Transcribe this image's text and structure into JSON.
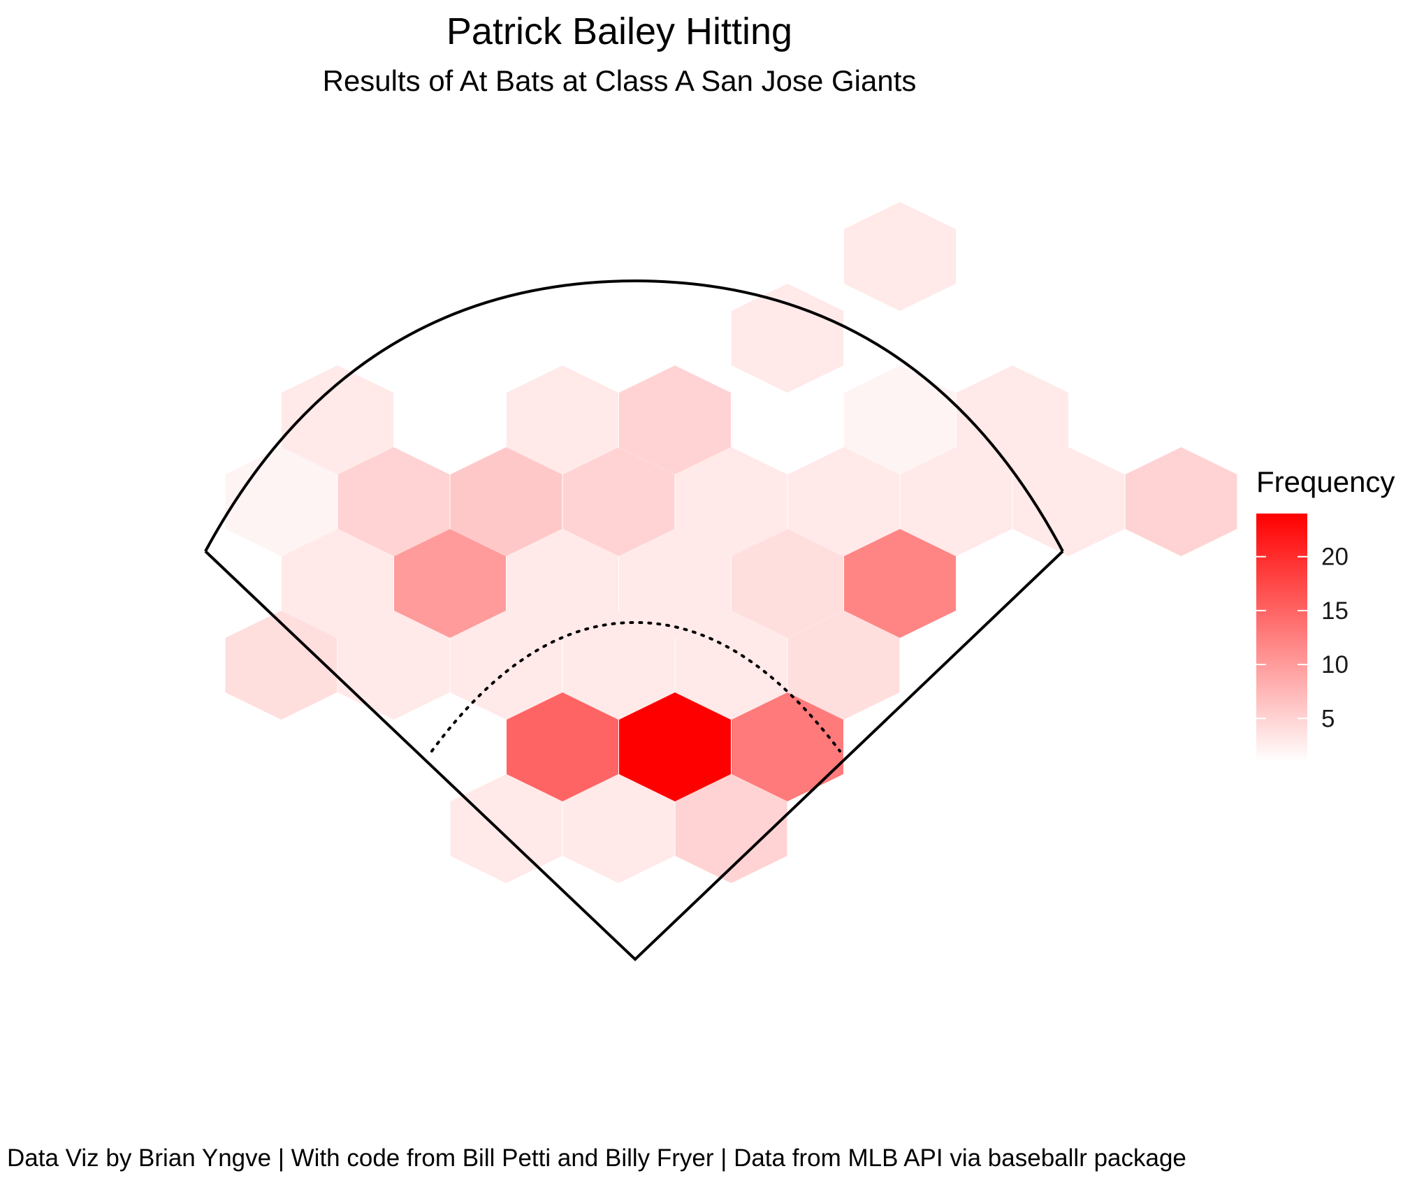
{
  "chart_data": {
    "type": "heatmap",
    "title": "Patrick Bailey Hitting",
    "subtitle": "Results of At Bats at Class A San Jose Giants",
    "caption": "Data Viz by Brian Yngve | With code from Bill Petti and Billy Fryer | Data from MLB API via baseballr package",
    "legend": {
      "title": "Frequency",
      "ticks": [
        5,
        10,
        15,
        20
      ],
      "range": [
        1,
        24
      ],
      "color_low": "#ffffff",
      "color_high": "#ff0000",
      "placement": "right"
    },
    "cells": [
      {
        "col": 5,
        "row": 0,
        "value": 3
      },
      {
        "col": 4,
        "row": 1,
        "value": 3
      },
      {
        "col": 0,
        "row": 2,
        "value": 3
      },
      {
        "col": 2,
        "row": 2,
        "value": 3
      },
      {
        "col": 3,
        "row": 2,
        "value": 5
      },
      {
        "col": 5,
        "row": 2,
        "value": 2
      },
      {
        "col": 6,
        "row": 2,
        "value": 3
      },
      {
        "col": -0.5,
        "row": 3,
        "value": 2
      },
      {
        "col": 0.5,
        "row": 3,
        "value": 5
      },
      {
        "col": 1.5,
        "row": 3,
        "value": 6
      },
      {
        "col": 2.5,
        "row": 3,
        "value": 5
      },
      {
        "col": 3.5,
        "row": 3,
        "value": 3
      },
      {
        "col": 4.5,
        "row": 3,
        "value": 3
      },
      {
        "col": 5.5,
        "row": 3,
        "value": 3
      },
      {
        "col": 6.5,
        "row": 3,
        "value": 3
      },
      {
        "col": 7.5,
        "row": 3,
        "value": 5
      },
      {
        "col": 0,
        "row": 4,
        "value": 3
      },
      {
        "col": 1,
        "row": 4,
        "value": 10
      },
      {
        "col": 2,
        "row": 4,
        "value": 3
      },
      {
        "col": 3,
        "row": 4,
        "value": 3
      },
      {
        "col": 4,
        "row": 4,
        "value": 4
      },
      {
        "col": 5,
        "row": 4,
        "value": 12
      },
      {
        "col": -0.5,
        "row": 5,
        "value": 4
      },
      {
        "col": 0.5,
        "row": 5,
        "value": 3
      },
      {
        "col": 1.5,
        "row": 5,
        "value": 3
      },
      {
        "col": 2.5,
        "row": 5,
        "value": 3
      },
      {
        "col": 3.5,
        "row": 5,
        "value": 3
      },
      {
        "col": 4.5,
        "row": 5,
        "value": 4
      },
      {
        "col": 5.5,
        "row": 5,
        "value": 1
      },
      {
        "col": 2,
        "row": 6,
        "value": 15
      },
      {
        "col": 3,
        "row": 6,
        "value": 24
      },
      {
        "col": 4,
        "row": 6,
        "value": 13
      },
      {
        "col": 1.5,
        "row": 7,
        "value": 3
      },
      {
        "col": 2.5,
        "row": 7,
        "value": 3
      },
      {
        "col": 3.5,
        "row": 7,
        "value": 5
      }
    ]
  }
}
